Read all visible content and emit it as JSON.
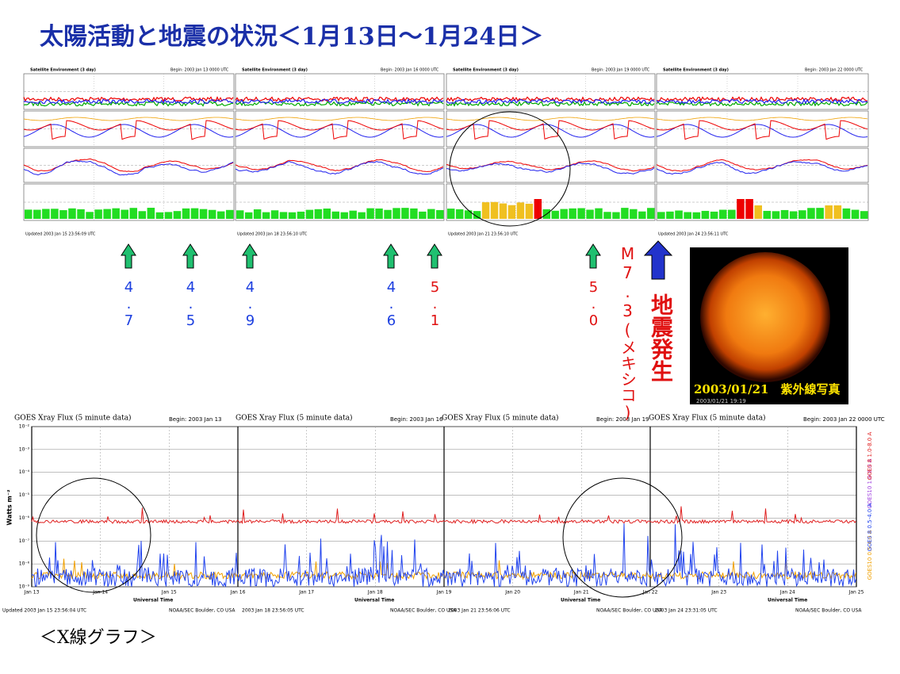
{
  "title": "太陽活動と地震の状況＜1月13日～1月24日＞",
  "environment_panels": [
    {
      "header": "Satellite Environment (3 day)",
      "begin": "Begin: 2003 Jan 13 0000 UTC",
      "updated": "Updated 2003 Jan 15 23:56:09 UTC"
    },
    {
      "header": "Satellite Environment (3 day)",
      "begin": "Begin: 2003 Jan 16 0000 UTC",
      "updated": "Updated 2003 Jan 18 23:56:10 UTC"
    },
    {
      "header": "Satellite Environment (3 day)",
      "begin": "Begin: 2003 Jan 19 0000 UTC",
      "updated": "Updated 2003 Jan 21 23:56:10 UTC"
    },
    {
      "header": "Satellite Environment (3 day)",
      "begin": "Begin: 2003 Jan 22 0000 UTC",
      "updated": "Updated 2003 Jan 24 23:56:11 UTC"
    }
  ],
  "earthquakes": [
    {
      "magnitude": "4.7",
      "color": "#1c3fe0"
    },
    {
      "magnitude": "4.5",
      "color": "#1c3fe0"
    },
    {
      "magnitude": "4.9",
      "color": "#1c3fe0"
    },
    {
      "magnitude": "4.6",
      "color": "#1c3fe0"
    },
    {
      "magnitude": "5.1",
      "color": "#e01010"
    },
    {
      "magnitude": "5.0",
      "color": "#e01010"
    }
  ],
  "main_event": {
    "magnitude": "M7.3(メキシコ)",
    "label": "地震発生"
  },
  "sun_photo": {
    "caption": "2003/01/21　紫外線写真",
    "timestamp": "2003/01/21 19:19"
  },
  "xray": {
    "title": "GOES Xray Flux (5 minute data)",
    "begins": [
      "Begin: 2003 Jan 13",
      "Begin: 2003 Jan 16",
      "Begin: 2003 Jan 19",
      "Begin: 2003 Jan 22 0000 UTC"
    ],
    "y_label": "Watts m⁻²",
    "x_label": "Universal Time",
    "yticks": [
      "10⁻²",
      "10⁻³",
      "10⁻⁴",
      "10⁻⁵",
      "10⁻⁶",
      "10⁻⁷",
      "10⁻⁸",
      "10⁻⁹"
    ],
    "dates": [
      "Jan 13",
      "Jan 14",
      "Jan 15",
      "Jan 16",
      "Jan 17",
      "Jan 18",
      "Jan 19",
      "Jan 20",
      "Jan 21",
      "Jan 22",
      "Jan 23",
      "Jan 24",
      "Jan 25"
    ],
    "updated": [
      "Updated 2003 Jan 15 23:56:04 UTC",
      "2003 Jan 18 23:56:05 UTC",
      "2003 Jan 21 23:56:06 UTC",
      "2003 Jan 24 23:31:05 UTC"
    ],
    "credit": "NOAA/SEC Boulder, CO USA",
    "legend": [
      "GOES10 1.0-8.0 A",
      "GOES 8 1.0-8.0 A",
      "GOES10 0.5-4.0 A",
      "GOES 8 0.5-4.0 A"
    ]
  },
  "caption": "＜X線グラフ＞"
}
